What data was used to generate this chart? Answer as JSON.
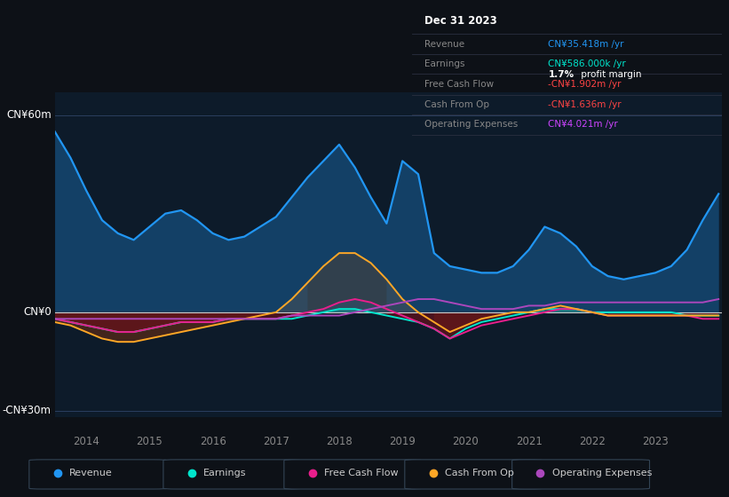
{
  "bg_color": "#0d1117",
  "plot_bg_color": "#0d1b2a",
  "title_box": {
    "date": "Dec 31 2023",
    "rows": [
      {
        "label": "Revenue",
        "value": "CN¥35.418m /yr",
        "value_color": "#2196f3"
      },
      {
        "label": "Earnings",
        "value": "CN¥586.000k /yr",
        "value_color": "#00e5cc"
      },
      {
        "label": "Free Cash Flow",
        "value": "-CN¥1.902m /yr",
        "value_color": "#ff4444"
      },
      {
        "label": "Cash From Op",
        "value": "-CN¥1.636m /yr",
        "value_color": "#ff4444"
      },
      {
        "label": "Operating Expenses",
        "value": "CN¥4.021m /yr",
        "value_color": "#cc44ff"
      }
    ]
  },
  "ylabel_top": "CN¥60m",
  "ylabel_zero": "CN¥0",
  "ylabel_bottom": "-CN¥30m",
  "ylim": [
    -32,
    67
  ],
  "legend": [
    {
      "label": "Revenue",
      "color": "#2196f3"
    },
    {
      "label": "Earnings",
      "color": "#00e5cc"
    },
    {
      "label": "Free Cash Flow",
      "color": "#e91e8c"
    },
    {
      "label": "Cash From Op",
      "color": "#ffa726"
    },
    {
      "label": "Operating Expenses",
      "color": "#ab47bc"
    }
  ],
  "x": [
    2013.5,
    2013.75,
    2014.0,
    2014.25,
    2014.5,
    2014.75,
    2015.0,
    2015.25,
    2015.5,
    2015.75,
    2016.0,
    2016.25,
    2016.5,
    2016.75,
    2017.0,
    2017.25,
    2017.5,
    2017.75,
    2018.0,
    2018.25,
    2018.5,
    2018.75,
    2019.0,
    2019.25,
    2019.5,
    2019.75,
    2020.0,
    2020.25,
    2020.5,
    2020.75,
    2021.0,
    2021.25,
    2021.5,
    2021.75,
    2022.0,
    2022.25,
    2022.5,
    2022.75,
    2023.0,
    2023.25,
    2023.5,
    2023.75,
    2024.0
  ],
  "revenue": [
    55,
    47,
    37,
    28,
    24,
    22,
    26,
    30,
    31,
    28,
    24,
    22,
    23,
    26,
    29,
    35,
    41,
    46,
    51,
    44,
    35,
    27,
    46,
    42,
    18,
    14,
    13,
    12,
    12,
    14,
    19,
    26,
    24,
    20,
    14,
    11,
    10,
    11,
    12,
    14,
    19,
    28,
    36
  ],
  "earnings": [
    -2,
    -3,
    -4,
    -5,
    -6,
    -6,
    -5,
    -4,
    -3,
    -3,
    -3,
    -2,
    -2,
    -2,
    -2,
    -2,
    -1,
    0,
    1,
    1,
    0,
    -1,
    -2,
    -3,
    -5,
    -8,
    -5,
    -3,
    -2,
    -1,
    0,
    1,
    1,
    1,
    0,
    0,
    0,
    0,
    0,
    0,
    -1,
    -1,
    -1
  ],
  "free_cash_flow": [
    -2,
    -3,
    -4,
    -5,
    -6,
    -6,
    -5,
    -4,
    -3,
    -3,
    -3,
    -2,
    -2,
    -2,
    -2,
    -1,
    0,
    1,
    3,
    4,
    3,
    1,
    -1,
    -3,
    -5,
    -8,
    -6,
    -4,
    -3,
    -2,
    -1,
    0,
    1,
    1,
    0,
    -1,
    -1,
    -1,
    -1,
    -1,
    -1,
    -2,
    -2
  ],
  "cash_from_op": [
    -3,
    -4,
    -6,
    -8,
    -9,
    -9,
    -8,
    -7,
    -6,
    -5,
    -4,
    -3,
    -2,
    -1,
    0,
    4,
    9,
    14,
    18,
    18,
    15,
    10,
    4,
    0,
    -3,
    -6,
    -4,
    -2,
    -1,
    0,
    0,
    1,
    2,
    1,
    0,
    -1,
    -1,
    -1,
    -1,
    -1,
    -1,
    -1,
    -1
  ],
  "op_expenses": [
    -2,
    -2,
    -2,
    -2,
    -2,
    -2,
    -2,
    -2,
    -2,
    -2,
    -2,
    -2,
    -2,
    -2,
    -2,
    -1,
    -1,
    -1,
    -1,
    0,
    1,
    2,
    3,
    4,
    4,
    3,
    2,
    1,
    1,
    1,
    2,
    2,
    3,
    3,
    3,
    3,
    3,
    3,
    3,
    3,
    3,
    3,
    4
  ],
  "xticks": [
    2014.0,
    2015.0,
    2016.0,
    2017.0,
    2018.0,
    2019.0,
    2020.0,
    2021.0,
    2022.0,
    2023.0
  ],
  "xticklabels": [
    "2014",
    "2015",
    "2016",
    "2017",
    "2018",
    "2019",
    "2020",
    "2021",
    "2022",
    "2023"
  ]
}
